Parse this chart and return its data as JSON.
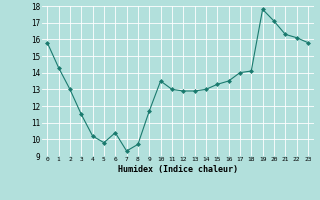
{
  "x": [
    0,
    1,
    2,
    3,
    4,
    5,
    6,
    7,
    8,
    9,
    10,
    11,
    12,
    13,
    14,
    15,
    16,
    17,
    18,
    19,
    20,
    21,
    22,
    23
  ],
  "y": [
    15.8,
    14.3,
    13.0,
    11.5,
    10.2,
    9.8,
    10.4,
    9.3,
    9.7,
    11.7,
    13.5,
    13.0,
    12.9,
    12.9,
    13.0,
    13.3,
    13.5,
    14.0,
    14.1,
    17.8,
    17.1,
    16.3,
    16.1,
    15.8
  ],
  "xlabel": "Humidex (Indice chaleur)",
  "ylim": [
    9,
    18
  ],
  "yticks": [
    9,
    10,
    11,
    12,
    13,
    14,
    15,
    16,
    17,
    18
  ],
  "xticks": [
    0,
    1,
    2,
    3,
    4,
    5,
    6,
    7,
    8,
    9,
    10,
    11,
    12,
    13,
    14,
    15,
    16,
    17,
    18,
    19,
    20,
    21,
    22,
    23
  ],
  "line_color": "#1a7a6e",
  "marker_color": "#1a7a6e",
  "bg_color": "#b2e0dc",
  "grid_color": "#ffffff",
  "fig_bg": "#b2e0dc"
}
